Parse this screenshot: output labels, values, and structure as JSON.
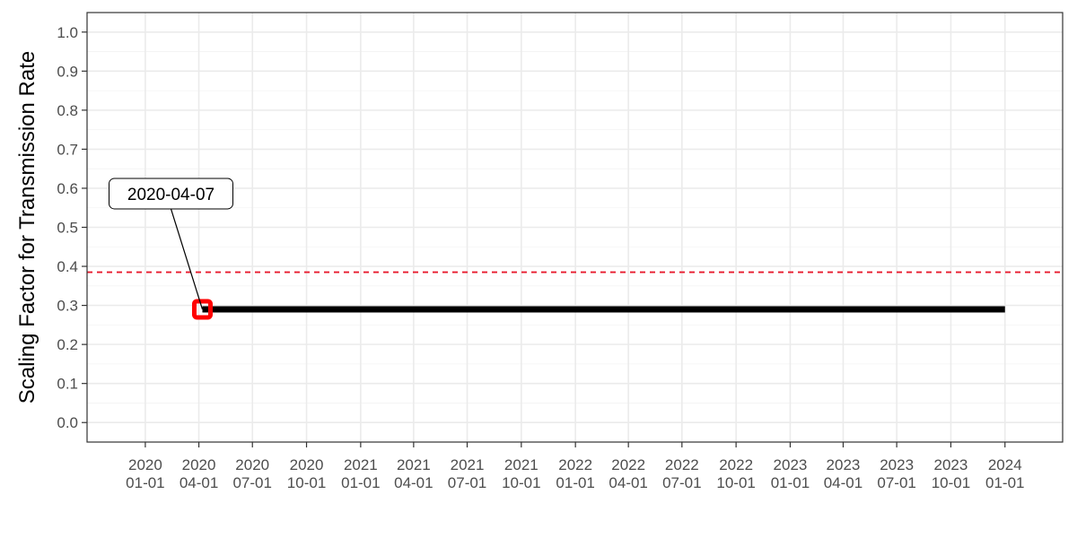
{
  "chart_data": {
    "type": "line",
    "ylabel": "Scaling Factor for Transmission Rate",
    "xlabel": "",
    "ylim": [
      -0.05,
      1.05
    ],
    "xlim": [
      "2019-09-24",
      "2024-04-08"
    ],
    "y_ticks": [
      0.0,
      0.1,
      0.2,
      0.3,
      0.4,
      0.5,
      0.6,
      0.7,
      0.8,
      0.9,
      1.0
    ],
    "y_tick_labels": [
      "0.0",
      "0.1",
      "0.2",
      "0.3",
      "0.4",
      "0.5",
      "0.6",
      "0.7",
      "0.8",
      "0.9",
      "1.0"
    ],
    "x_ticks": [
      {
        "date": "2020-01-01",
        "line1": "2020",
        "line2": "01-01"
      },
      {
        "date": "2020-04-01",
        "line1": "2020",
        "line2": "04-01"
      },
      {
        "date": "2020-07-01",
        "line1": "2020",
        "line2": "07-01"
      },
      {
        "date": "2020-10-01",
        "line1": "2020",
        "line2": "10-01"
      },
      {
        "date": "2021-01-01",
        "line1": "2021",
        "line2": "01-01"
      },
      {
        "date": "2021-04-01",
        "line1": "2021",
        "line2": "04-01"
      },
      {
        "date": "2021-07-01",
        "line1": "2021",
        "line2": "07-01"
      },
      {
        "date": "2021-10-01",
        "line1": "2021",
        "line2": "10-01"
      },
      {
        "date": "2022-01-01",
        "line1": "2022",
        "line2": "01-01"
      },
      {
        "date": "2022-04-01",
        "line1": "2022",
        "line2": "04-01"
      },
      {
        "date": "2022-07-01",
        "line1": "2022",
        "line2": "07-01"
      },
      {
        "date": "2022-10-01",
        "line1": "2022",
        "line2": "10-01"
      },
      {
        "date": "2023-01-01",
        "line1": "2023",
        "line2": "01-01"
      },
      {
        "date": "2023-04-01",
        "line1": "2023",
        "line2": "04-01"
      },
      {
        "date": "2023-07-01",
        "line1": "2023",
        "line2": "07-01"
      },
      {
        "date": "2023-10-01",
        "line1": "2023",
        "line2": "10-01"
      },
      {
        "date": "2024-01-01",
        "line1": "2024",
        "line2": "01-01"
      }
    ],
    "series": [
      {
        "color": "#000000",
        "points": [
          {
            "x": "2020-04-07",
            "y": 0.29
          },
          {
            "x": "2024-01-01",
            "y": 0.29
          }
        ]
      }
    ],
    "reference_line": {
      "y": 0.385,
      "color": "#e8192c",
      "style": "dashed"
    },
    "highlight_point": {
      "x": "2020-04-07",
      "y": 0.29,
      "color": "#ff0000",
      "marker": "square"
    },
    "annotation": {
      "text": "2020-04-07",
      "target_x": "2020-04-07",
      "target_y": 0.29
    },
    "grid": true
  }
}
